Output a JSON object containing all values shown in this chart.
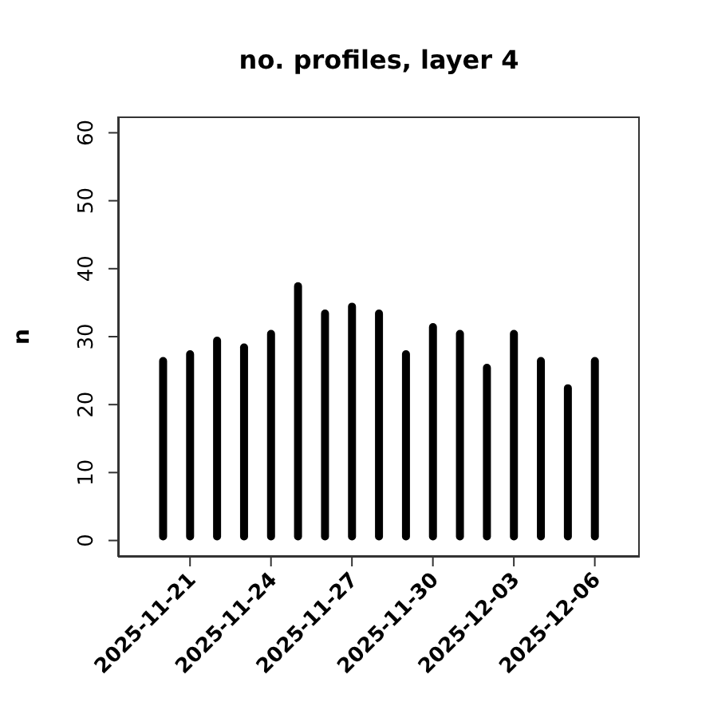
{
  "chart_data": {
    "type": "bar",
    "title": "no. profiles, layer 4",
    "ylabel": "n",
    "x": [
      "2025-11-20",
      "2025-11-21",
      "2025-11-22",
      "2025-11-23",
      "2025-11-24",
      "2025-11-25",
      "2025-11-26",
      "2025-11-27",
      "2025-11-28",
      "2025-11-29",
      "2025-11-30",
      "2025-12-01",
      "2025-12-02",
      "2025-12-03",
      "2025-12-04",
      "2025-12-05",
      "2025-12-06"
    ],
    "values": [
      27,
      28,
      30,
      29,
      31,
      38,
      34,
      35,
      34,
      28,
      32,
      31,
      26,
      31,
      27,
      23,
      27
    ],
    "color": "#000000",
    "xlim": [
      "2025-11-18T08:00",
      "2025-12-07T16:00"
    ],
    "xticks": [
      "2025-11-21",
      "2025-11-24",
      "2025-11-27",
      "2025-11-30",
      "2025-12-03",
      "2025-12-06"
    ],
    "ylim": [
      -2.4,
      62.4
    ],
    "yticks": [
      0,
      10,
      20,
      30,
      40,
      50,
      60
    ],
    "grid": false,
    "legend": false
  }
}
